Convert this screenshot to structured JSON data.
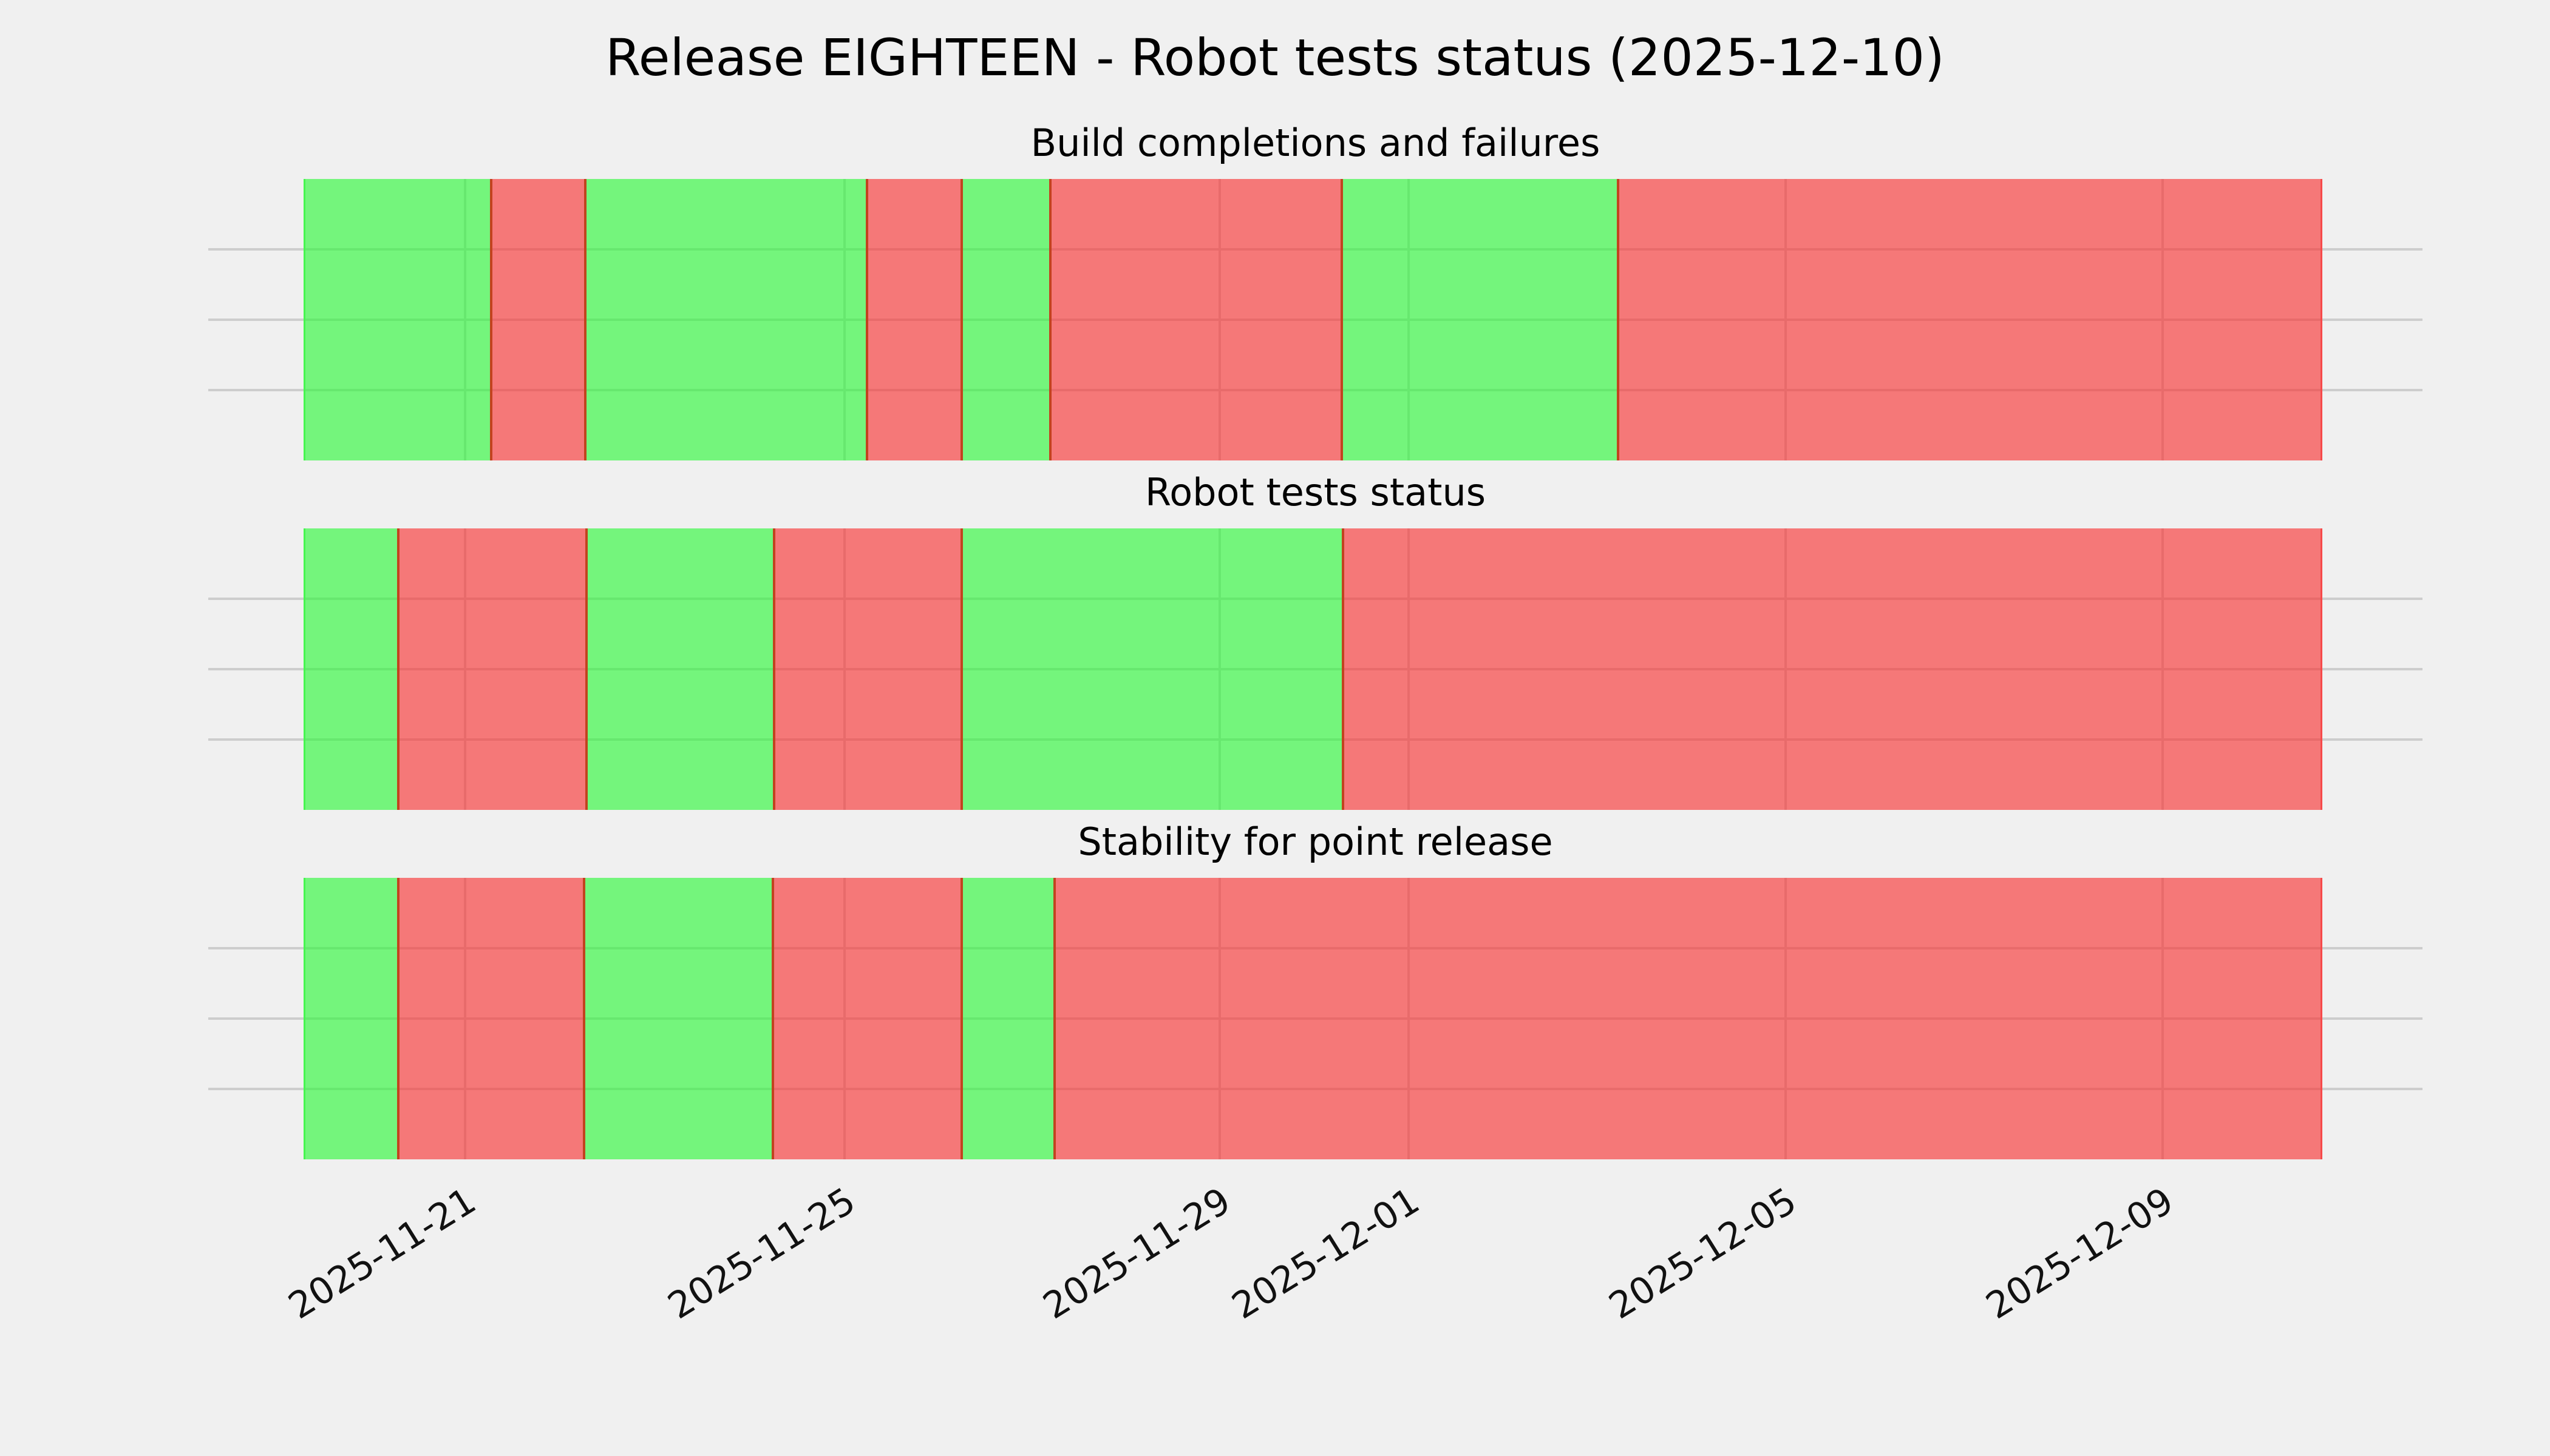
{
  "figure": {
    "title": "Release EIGHTEEN - Robot tests status (2025-12-10)",
    "background_color": "#f0f0f0"
  },
  "colors": {
    "pass_fill": "rgba(40,248,53,0.62)",
    "fail_fill": "rgba(248,46,46,0.62)",
    "pass_edge": "#45f650",
    "fail_edge": "#f64a4a",
    "segment_boundary_line": "#c2431f",
    "gridline": "#cdcdcd",
    "text": "#000000"
  },
  "chart_data": [
    {
      "type": "heatmap",
      "subtype": "status-timeline",
      "title": "Build completions and failures",
      "x_range": [
        "2025-11-19 07:00",
        "2025-12-10 17:00"
      ],
      "ylim": [
        0,
        1
      ],
      "grid": true,
      "y_ticks_unlabeled": [
        0.25,
        0.5,
        0.75
      ],
      "x_ticks": [
        {
          "label": "2025-11-21",
          "pct": 8.0
        },
        {
          "label": "2025-11-25",
          "pct": 26.8
        },
        {
          "label": "2025-11-29",
          "pct": 45.39
        },
        {
          "label": "2025-12-01",
          "pct": 54.74
        },
        {
          "label": "2025-12-05",
          "pct": 73.42
        },
        {
          "label": "2025-12-09",
          "pct": 92.09
        }
      ],
      "segments": [
        {
          "status": "pass",
          "start": "2025-11-19 07:00",
          "end": "2025-11-21 07:00",
          "start_pct": 0.0,
          "end_pct": 9.29
        },
        {
          "status": "fail",
          "start": "2025-11-21 07:00",
          "end": "2025-11-22 07:00",
          "start_pct": 9.29,
          "end_pct": 13.95
        },
        {
          "status": "pass",
          "start": "2025-11-22 07:00",
          "end": "2025-11-25 06:00",
          "start_pct": 13.95,
          "end_pct": 27.91
        },
        {
          "status": "fail",
          "start": "2025-11-25 06:00",
          "end": "2025-11-26 06:00",
          "start_pct": 27.91,
          "end_pct": 32.6
        },
        {
          "status": "pass",
          "start": "2025-11-26 06:00",
          "end": "2025-11-27 05:00",
          "start_pct": 32.6,
          "end_pct": 36.99
        },
        {
          "status": "fail",
          "start": "2025-11-27 05:00",
          "end": "2025-11-30 07:00",
          "start_pct": 36.99,
          "end_pct": 51.43
        },
        {
          "status": "pass",
          "start": "2025-11-30 07:00",
          "end": "2025-12-03 06:00",
          "start_pct": 51.43,
          "end_pct": 65.11
        },
        {
          "status": "fail",
          "start": "2025-12-03 06:00",
          "end": "2025-12-10 17:00",
          "start_pct": 65.11,
          "end_pct": 100.0
        }
      ]
    },
    {
      "type": "heatmap",
      "subtype": "status-timeline",
      "title": "Robot tests status",
      "x_range": [
        "2025-11-19 07:00",
        "2025-12-10 17:00"
      ],
      "ylim": [
        0,
        1
      ],
      "grid": true,
      "y_ticks_unlabeled": [
        0.25,
        0.5,
        0.75
      ],
      "x_ticks": [
        {
          "label": "2025-11-21",
          "pct": 8.0
        },
        {
          "label": "2025-11-25",
          "pct": 26.8
        },
        {
          "label": "2025-11-29",
          "pct": 45.39
        },
        {
          "label": "2025-12-01",
          "pct": 54.74
        },
        {
          "label": "2025-12-05",
          "pct": 73.42
        },
        {
          "label": "2025-12-09",
          "pct": 92.09
        }
      ],
      "segments": [
        {
          "status": "pass",
          "start": "2025-11-19 07:00",
          "end": "2025-11-20 07:00",
          "start_pct": 0.0,
          "end_pct": 4.69
        },
        {
          "status": "fail",
          "start": "2025-11-20 07:00",
          "end": "2025-11-22 07:00",
          "start_pct": 4.69,
          "end_pct": 14.02
        },
        {
          "status": "pass",
          "start": "2025-11-22 07:00",
          "end": "2025-11-24 06:00",
          "start_pct": 14.02,
          "end_pct": 23.31
        },
        {
          "status": "fail",
          "start": "2025-11-24 06:00",
          "end": "2025-11-26 06:00",
          "start_pct": 23.31,
          "end_pct": 32.6
        },
        {
          "status": "pass",
          "start": "2025-11-26 06:00",
          "end": "2025-11-30 07:00",
          "start_pct": 32.6,
          "end_pct": 51.49
        },
        {
          "status": "fail",
          "start": "2025-11-30 07:00",
          "end": "2025-12-10 17:00",
          "start_pct": 51.49,
          "end_pct": 100.0
        }
      ]
    },
    {
      "type": "heatmap",
      "subtype": "status-timeline",
      "title": "Stability for point release",
      "x_range": [
        "2025-11-19 07:00",
        "2025-12-10 17:00"
      ],
      "ylim": [
        0,
        1
      ],
      "grid": true,
      "y_ticks_unlabeled": [
        0.25,
        0.5,
        0.75
      ],
      "x_ticks": [
        {
          "label": "2025-11-21",
          "pct": 8.0
        },
        {
          "label": "2025-11-25",
          "pct": 26.8
        },
        {
          "label": "2025-11-29",
          "pct": 45.39
        },
        {
          "label": "2025-12-01",
          "pct": 54.74
        },
        {
          "label": "2025-12-05",
          "pct": 73.42
        },
        {
          "label": "2025-12-09",
          "pct": 92.09
        }
      ],
      "segments": [
        {
          "status": "pass",
          "start": "2025-11-19 07:00",
          "end": "2025-11-20 07:00",
          "start_pct": 0.0,
          "end_pct": 4.69
        },
        {
          "status": "fail",
          "start": "2025-11-20 07:00",
          "end": "2025-11-22 07:00",
          "start_pct": 4.69,
          "end_pct": 13.89
        },
        {
          "status": "pass",
          "start": "2025-11-22 07:00",
          "end": "2025-11-24 06:00",
          "start_pct": 13.89,
          "end_pct": 23.25
        },
        {
          "status": "fail",
          "start": "2025-11-24 06:00",
          "end": "2025-11-26 06:00",
          "start_pct": 23.25,
          "end_pct": 32.6
        },
        {
          "status": "pass",
          "start": "2025-11-26 06:00",
          "end": "2025-11-27 05:00",
          "start_pct": 32.6,
          "end_pct": 37.2
        },
        {
          "status": "fail",
          "start": "2025-11-27 05:00",
          "end": "2025-12-10 17:00",
          "start_pct": 37.2,
          "end_pct": 100.0
        }
      ]
    }
  ]
}
